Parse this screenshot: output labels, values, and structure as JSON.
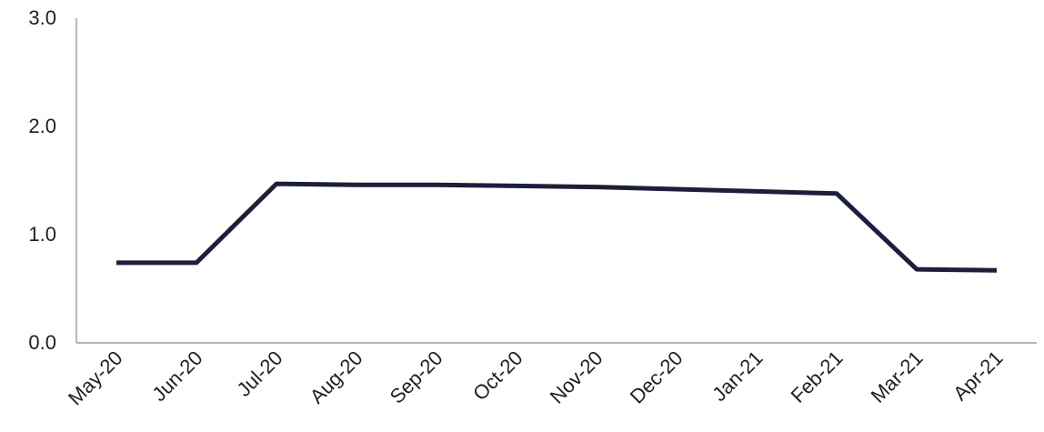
{
  "chart_data": {
    "type": "line",
    "title": "",
    "xlabel": "",
    "ylabel": "",
    "categories": [
      "May-20",
      "Jun-20",
      "Jul-20",
      "Aug-20",
      "Sep-20",
      "Oct-20",
      "Nov-20",
      "Dec-20",
      "Jan-21",
      "Feb-21",
      "Mar-21",
      "Apr-21"
    ],
    "series": [
      {
        "values": [
          0.74,
          0.74,
          1.47,
          1.46,
          1.46,
          1.45,
          1.44,
          1.42,
          1.4,
          1.38,
          0.68,
          0.67
        ]
      }
    ],
    "ylim": [
      0,
      3
    ],
    "yticks": [
      0,
      1,
      2,
      3
    ],
    "ytick_labels": [
      "0.0",
      "1.0",
      "2.0",
      "3.0"
    ],
    "grid": false,
    "legend": "none",
    "colors": {
      "line": "#1b1f3b",
      "axis": "#8c8c8c",
      "text": "#1f1f1f"
    }
  }
}
